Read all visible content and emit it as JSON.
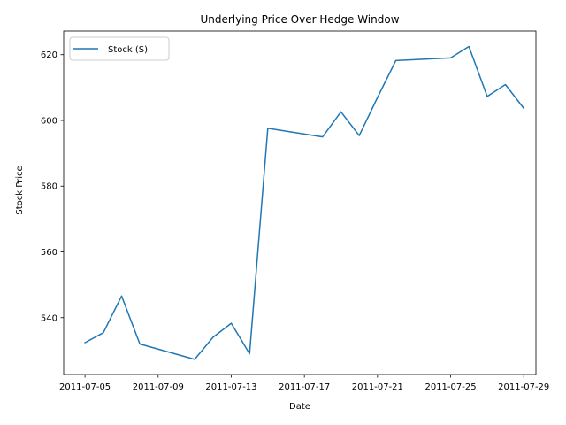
{
  "chart_data": {
    "type": "line",
    "title": "Underlying Price Over Hedge Window",
    "xlabel": "Date",
    "ylabel": "Stock Price",
    "grid": false,
    "legend_position": "top-left",
    "xlim": [
      "2011-07-03T20:00",
      "2011-07-29T16:00"
    ],
    "ylim": [
      522.7,
      627.2
    ],
    "x_ticks": [
      "2011-07-05",
      "2011-07-09",
      "2011-07-13",
      "2011-07-17",
      "2011-07-21",
      "2011-07-25",
      "2011-07-29"
    ],
    "y_ticks": [
      540,
      560,
      580,
      600,
      620
    ],
    "series": [
      {
        "name": "Stock (S)",
        "color": "#1f77b4",
        "x": [
          "2011-07-05",
          "2011-07-06",
          "2011-07-07",
          "2011-07-08",
          "2011-07-11",
          "2011-07-12",
          "2011-07-13",
          "2011-07-14",
          "2011-07-15",
          "2011-07-18",
          "2011-07-19",
          "2011-07-20",
          "2011-07-21",
          "2011-07-22",
          "2011-07-25",
          "2011-07-26",
          "2011-07-27",
          "2011-07-28",
          "2011-07-29"
        ],
        "values": [
          532.4,
          535.4,
          546.6,
          532.0,
          527.3,
          534.0,
          538.3,
          529.0,
          597.6,
          595.0,
          602.6,
          595.4,
          607.0,
          618.2,
          619.0,
          622.5,
          607.3,
          610.9,
          603.7
        ]
      }
    ]
  }
}
